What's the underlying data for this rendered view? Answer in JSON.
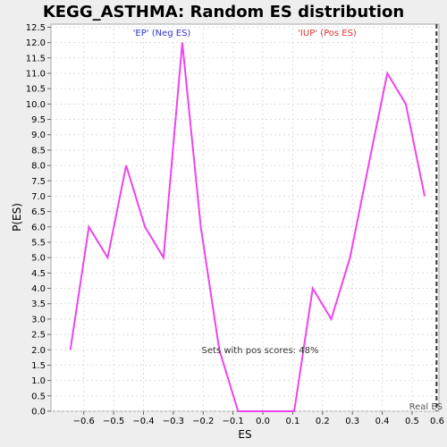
{
  "chart_data": {
    "type": "line",
    "title": "KEGG_ASTHMA: Random ES distribution",
    "xlabel": "ES",
    "ylabel": "P(ES)",
    "xlim": [
      -0.71,
      0.59
    ],
    "ylim": [
      0.0,
      12.6
    ],
    "x_ticks": [
      -0.6,
      -0.5,
      -0.4,
      -0.3,
      -0.2,
      -0.1,
      0.0,
      0.1,
      0.2,
      0.3,
      0.4,
      0.5
    ],
    "x_tick_labels": [
      "−0.6",
      "−0.5",
      "−0.4",
      "−0.3",
      "−0.2",
      "−0.1",
      "0.0",
      "0.1",
      "0.2",
      "0.3",
      "0.4",
      "0.5"
    ],
    "extra_x_tick": {
      "value": 0.6,
      "label": "0.6"
    },
    "y_ticks": [
      0.0,
      0.5,
      1.0,
      1.5,
      2.0,
      2.5,
      3.0,
      3.5,
      4.0,
      4.5,
      5.0,
      5.5,
      6.0,
      6.5,
      7.0,
      7.5,
      8.0,
      8.5,
      9.0,
      9.5,
      10.0,
      10.5,
      11.0,
      11.5,
      12.0,
      12.5
    ],
    "y_tick_labels": [
      "0.0",
      "0.5",
      "1.0",
      "1.5",
      "2.0",
      "2.5",
      "3.0",
      "3.5",
      "4.0",
      "4.5",
      "5.0",
      "5.5",
      "6.0",
      "6.5",
      "7.0",
      "7.5",
      "8.0",
      "8.5",
      "9.0",
      "9.5",
      "10.0",
      "10.5",
      "11.0",
      "11.5",
      "12.0",
      "12.5"
    ],
    "grid": true,
    "series": [
      {
        "color": "#ee44ee",
        "x": [
          -0.645,
          -0.583,
          -0.52,
          -0.458,
          -0.395,
          -0.333,
          -0.27,
          -0.208,
          -0.146,
          -0.083,
          -0.021,
          0.042,
          0.105,
          0.167,
          0.229,
          0.292,
          0.354,
          0.417,
          0.479,
          0.542
        ],
        "y": [
          2.0,
          6.0,
          5.0,
          8.0,
          6.0,
          5.0,
          12.0,
          6.0,
          2.0,
          0.0,
          0.0,
          0.0,
          0.0,
          4.0,
          3.0,
          5.0,
          8.0,
          11.0,
          10.0,
          7.0
        ]
      }
    ],
    "real_es": {
      "value": 0.582,
      "label": "Real ES"
    },
    "annotations": {
      "neg": {
        "text": "'EP' (Neg ES)",
        "color": "#3333cc"
      },
      "pos": {
        "text": "'IUP' (Pos ES)",
        "color": "#dd3333"
      },
      "pos_scores": {
        "text": "Sets with pos scores: 48%",
        "color": "#333333"
      }
    }
  }
}
